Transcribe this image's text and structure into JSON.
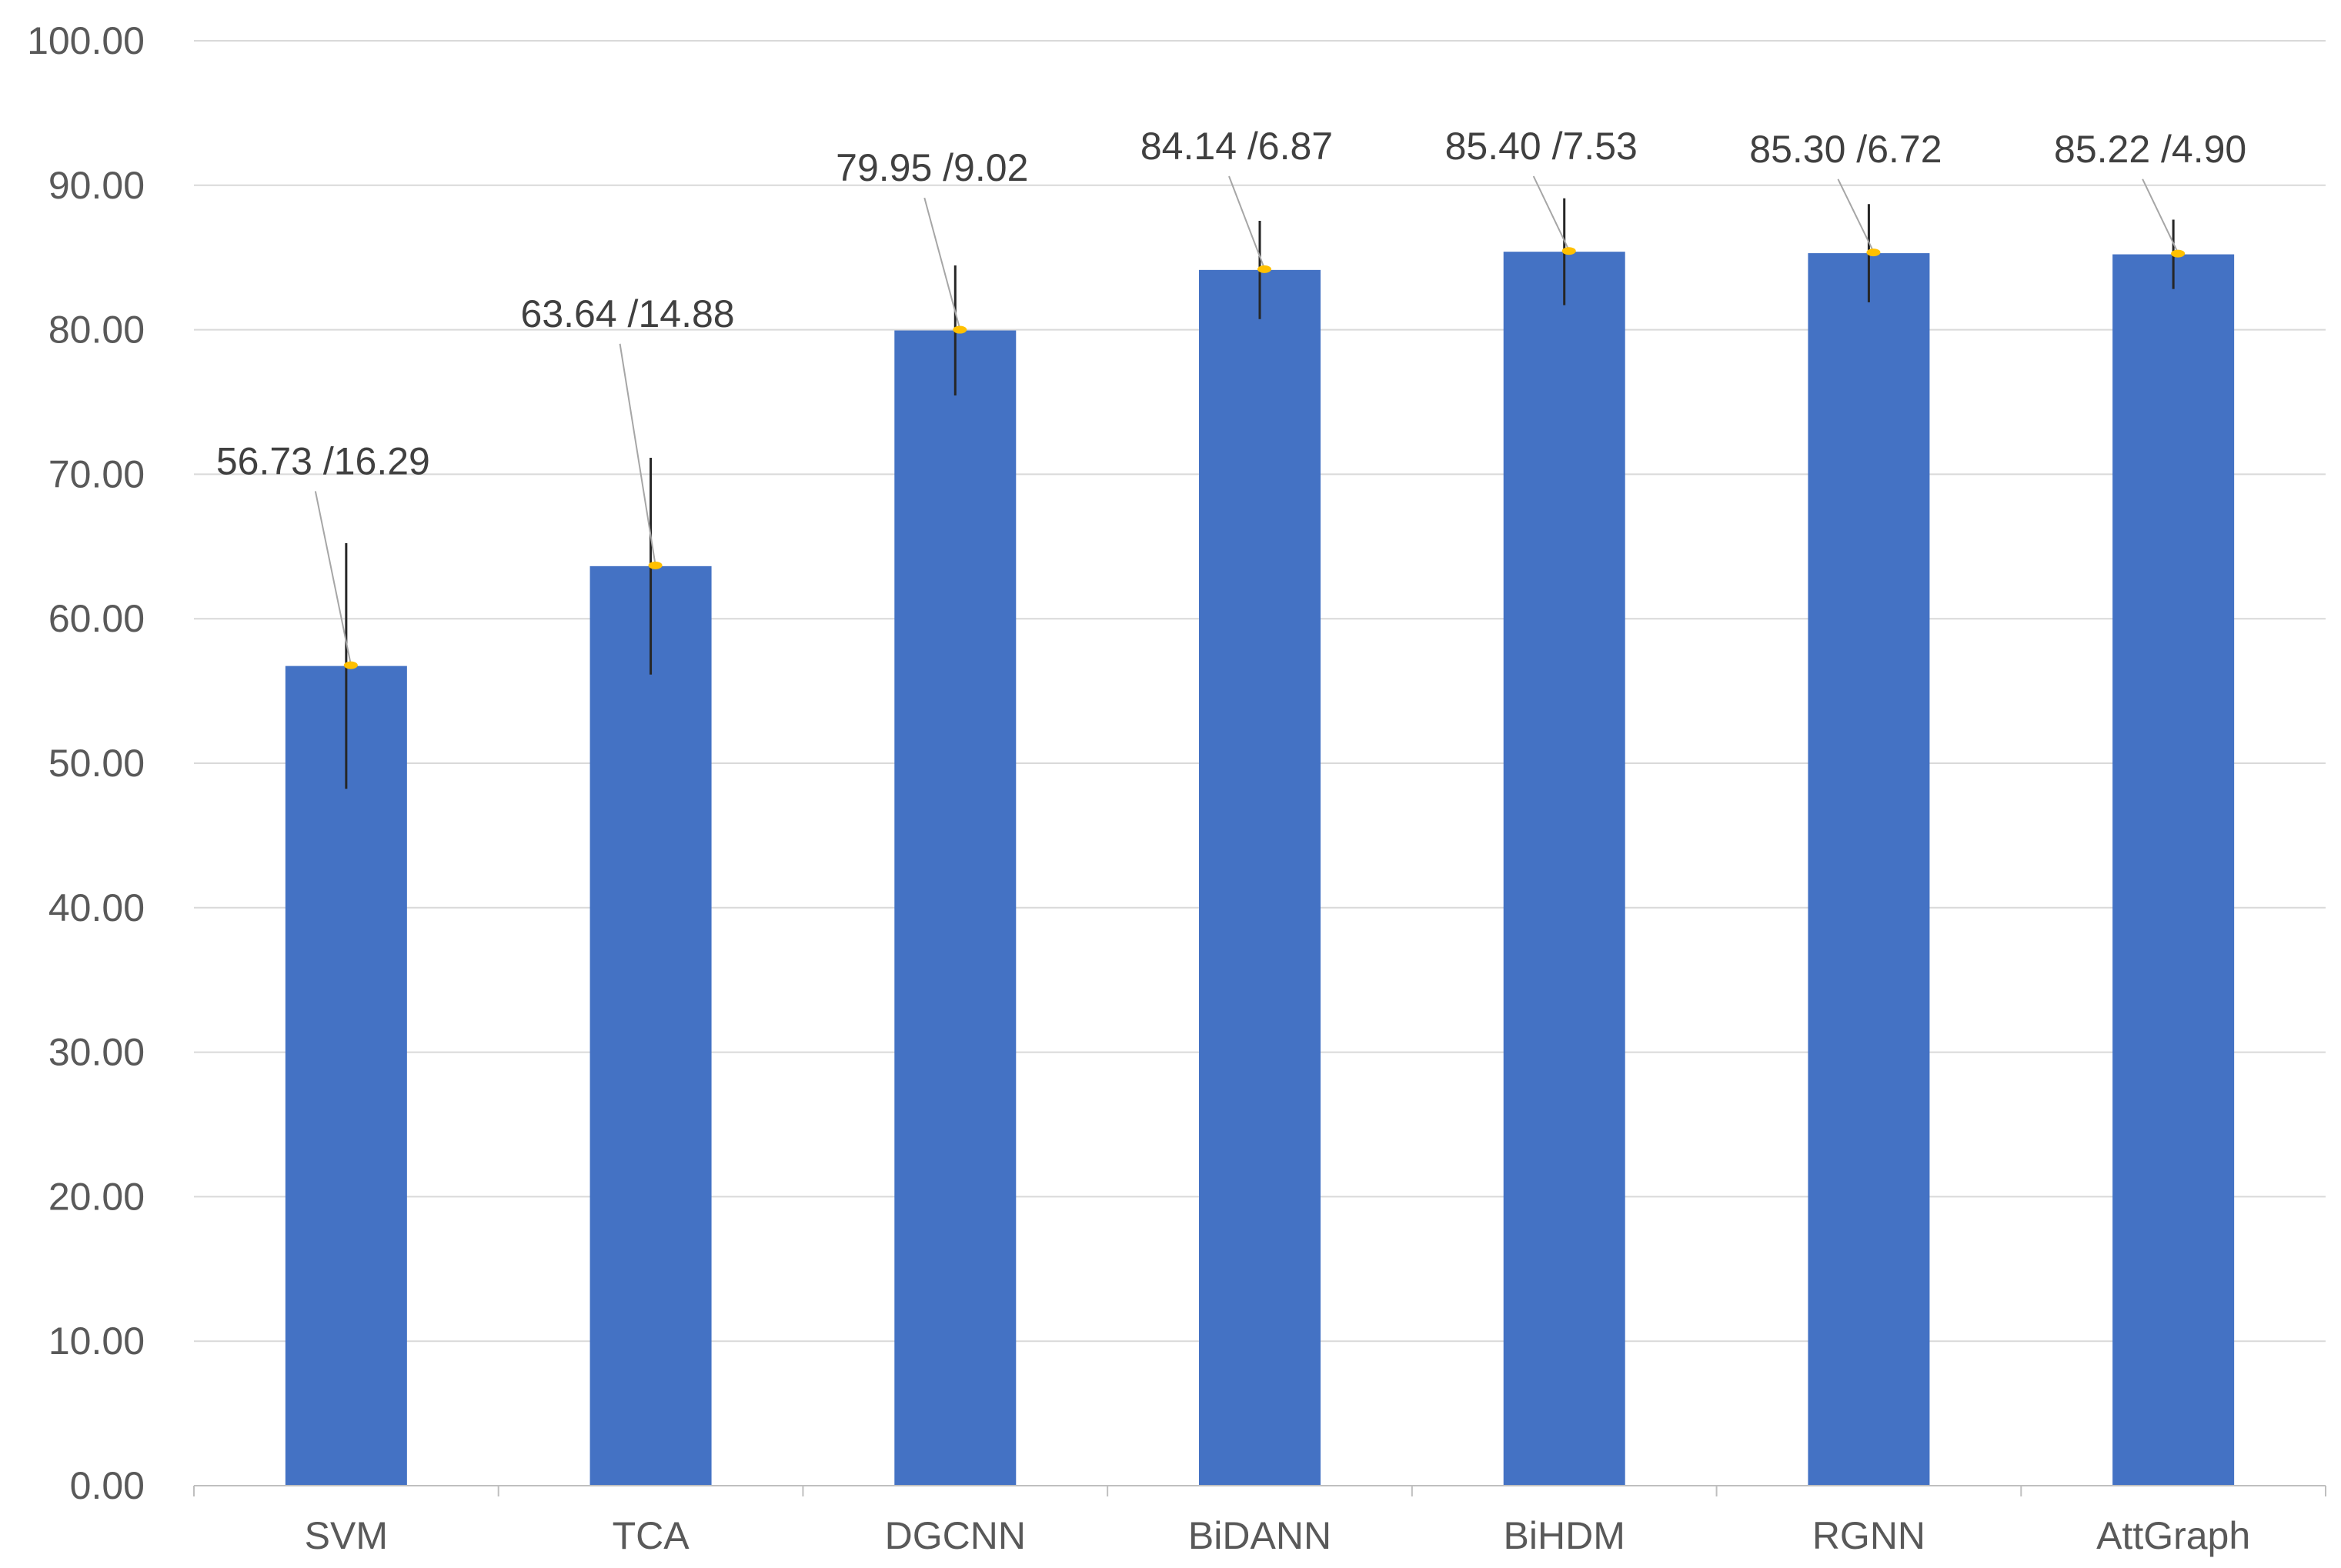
{
  "chart_data": {
    "type": "bar",
    "title": "",
    "xlabel": "",
    "ylabel": "",
    "ylim": [
      0,
      100
    ],
    "yticks": [
      "0.00",
      "10.00",
      "20.00",
      "30.00",
      "40.00",
      "50.00",
      "60.00",
      "70.00",
      "80.00",
      "90.00",
      "100.00"
    ],
    "categories": [
      "SVM",
      "TCA",
      "DGCNN",
      "BiDANN",
      "BiHDM",
      "RGNN",
      "AttGraph"
    ],
    "values": [
      56.73,
      63.64,
      79.95,
      84.14,
      85.4,
      85.3,
      85.22
    ],
    "error_bars": [
      8.5,
      7.5,
      4.5,
      3.4,
      3.7,
      3.4,
      2.4
    ],
    "data_labels": [
      "56.73 /16.29",
      "63.64 /14.88",
      "79.95 /9.02",
      "84.14 /6.87",
      "85.40 /7.53",
      "85.30 /6.72",
      "85.22 /4.90"
    ],
    "label_values": [
      70.0,
      80.2,
      90.3,
      91.8,
      91.8,
      91.6,
      91.6
    ],
    "grid": true,
    "legend": "none",
    "colors": {
      "bar": "#4472c4",
      "grid": "#d9d9d9",
      "axis": "#bfbfbf",
      "marker": "#ffc000",
      "error": "#262626"
    }
  }
}
